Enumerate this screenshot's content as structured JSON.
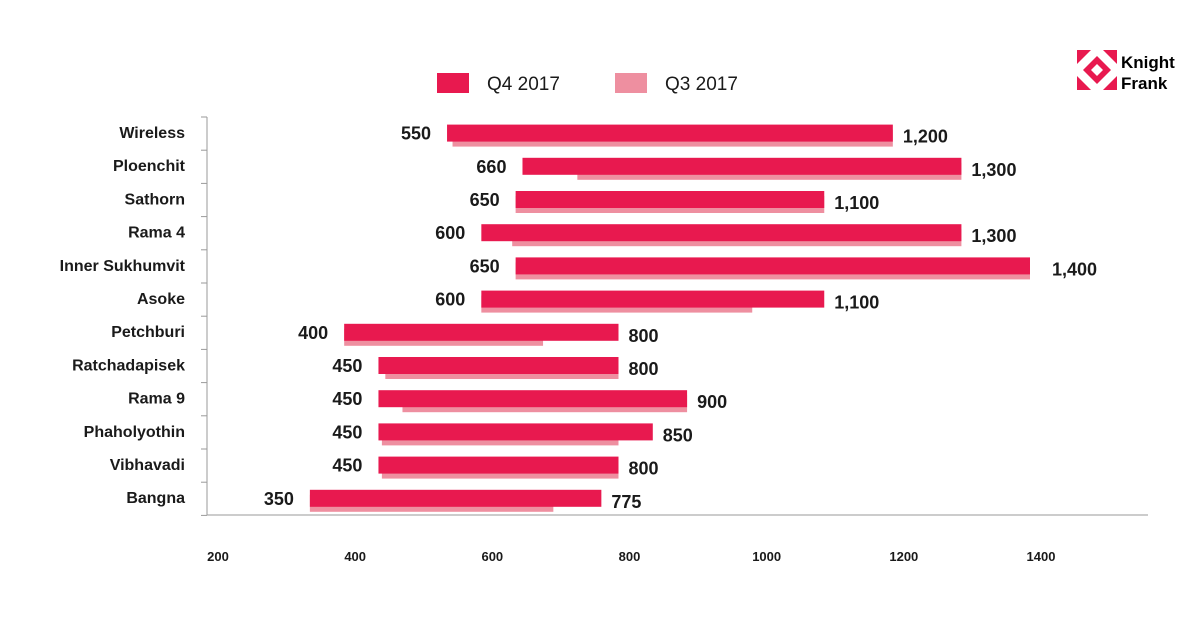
{
  "brand": {
    "name_line1": "Knight",
    "name_line2": "Frank",
    "color": "#e8194f"
  },
  "colors": {
    "q4": "#e8194f",
    "q3": "#ee8fa0",
    "axis": "#9a9a9a"
  },
  "chart_data": {
    "type": "bar",
    "orientation": "horizontal",
    "style": "floating-range",
    "legend_position": "top",
    "grid": false,
    "xlim": [
      200,
      1540
    ],
    "x_ticks": [
      200,
      400,
      600,
      800,
      1000,
      1200,
      1400
    ],
    "categories": [
      "Wireless",
      "Ploenchit",
      "Sathorn",
      "Rama 4",
      "Inner Sukhumvit",
      "Asoke",
      "Petchburi",
      "Ratchadapisek",
      "Rama 9",
      "Phaholyothin",
      "Vibhavadi",
      "Bangna"
    ],
    "series": [
      {
        "name": "Q4 2017",
        "low": [
          550,
          660,
          650,
          600,
          650,
          600,
          400,
          450,
          450,
          450,
          450,
          350
        ],
        "high": [
          1200,
          1300,
          1100,
          1300,
          1400,
          1100,
          800,
          800,
          900,
          850,
          800,
          775
        ],
        "low_labels": [
          "550",
          "660",
          "650",
          "600",
          "650",
          "600",
          "400",
          "450",
          "450",
          "450",
          "450",
          "350"
        ],
        "high_labels": [
          "1,200",
          "1,300",
          "1,100",
          "1,300",
          "1,400",
          "1,100",
          "800",
          "800",
          "900",
          "850",
          "800",
          "775"
        ]
      },
      {
        "name": "Q3 2017",
        "low": [
          558,
          740,
          650,
          645,
          650,
          600,
          400,
          460,
          485,
          455,
          455,
          350
        ],
        "high": [
          1200,
          1300,
          1100,
          1300,
          1400,
          995,
          690,
          800,
          900,
          800,
          800,
          705
        ]
      }
    ]
  }
}
